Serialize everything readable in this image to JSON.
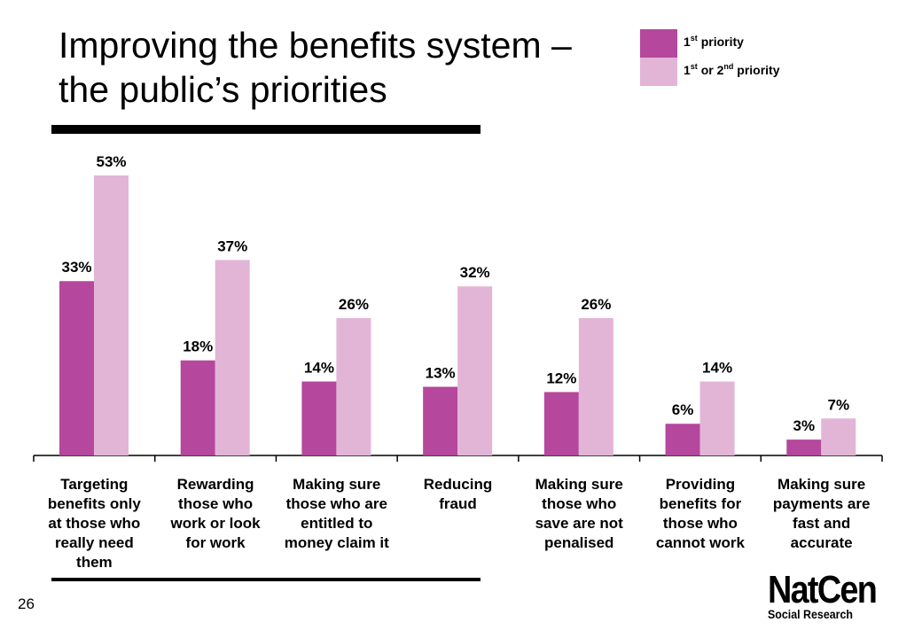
{
  "title": {
    "line1": "Improving the benefits system –",
    "line2": "the public’s priorities"
  },
  "legend": {
    "items": [
      {
        "prefix": "1",
        "sup": "st",
        "middle": " priority",
        "sup2": "",
        "suffix": "",
        "color": "#B5479C"
      },
      {
        "prefix": "1",
        "sup": "st",
        "middle": " or 2",
        "sup2": "nd",
        "suffix": " priority",
        "color": "#E2B5D7"
      }
    ]
  },
  "page_number": "26",
  "logo": {
    "main": "NatCen",
    "sub": "Social Research"
  },
  "chart_data": {
    "type": "bar",
    "categories": [
      [
        "Targeting",
        "benefits only",
        "at those who",
        "really need",
        "them"
      ],
      [
        "Rewarding",
        "those who",
        "work or look",
        "for work"
      ],
      [
        "Making sure",
        "those who are",
        "entitled to",
        "money claim it"
      ],
      [
        "Reducing",
        "fraud"
      ],
      [
        "Making sure",
        "those who",
        "save are not",
        "penalised"
      ],
      [
        "Providing",
        "benefits for",
        "those who",
        "cannot work"
      ],
      [
        "Making sure",
        "payments are",
        "fast and",
        "accurate"
      ]
    ],
    "series": [
      {
        "name": "1st priority",
        "color": "#B5479C",
        "values": [
          33,
          18,
          14,
          13,
          12,
          6,
          3
        ],
        "labels": [
          "33%",
          "18%",
          "14%",
          "13%",
          "12%",
          "6%",
          "3%"
        ]
      },
      {
        "name": "1st or 2nd priority",
        "color": "#E2B5D7",
        "values": [
          53,
          37,
          26,
          32,
          26,
          14,
          7
        ],
        "labels": [
          "53%",
          "37%",
          "26%",
          "32%",
          "26%",
          "14%",
          "7%"
        ]
      }
    ],
    "ylim": [
      0,
      55
    ],
    "grid": false,
    "legend_position": "top-right",
    "xlabel": "",
    "ylabel": ""
  }
}
